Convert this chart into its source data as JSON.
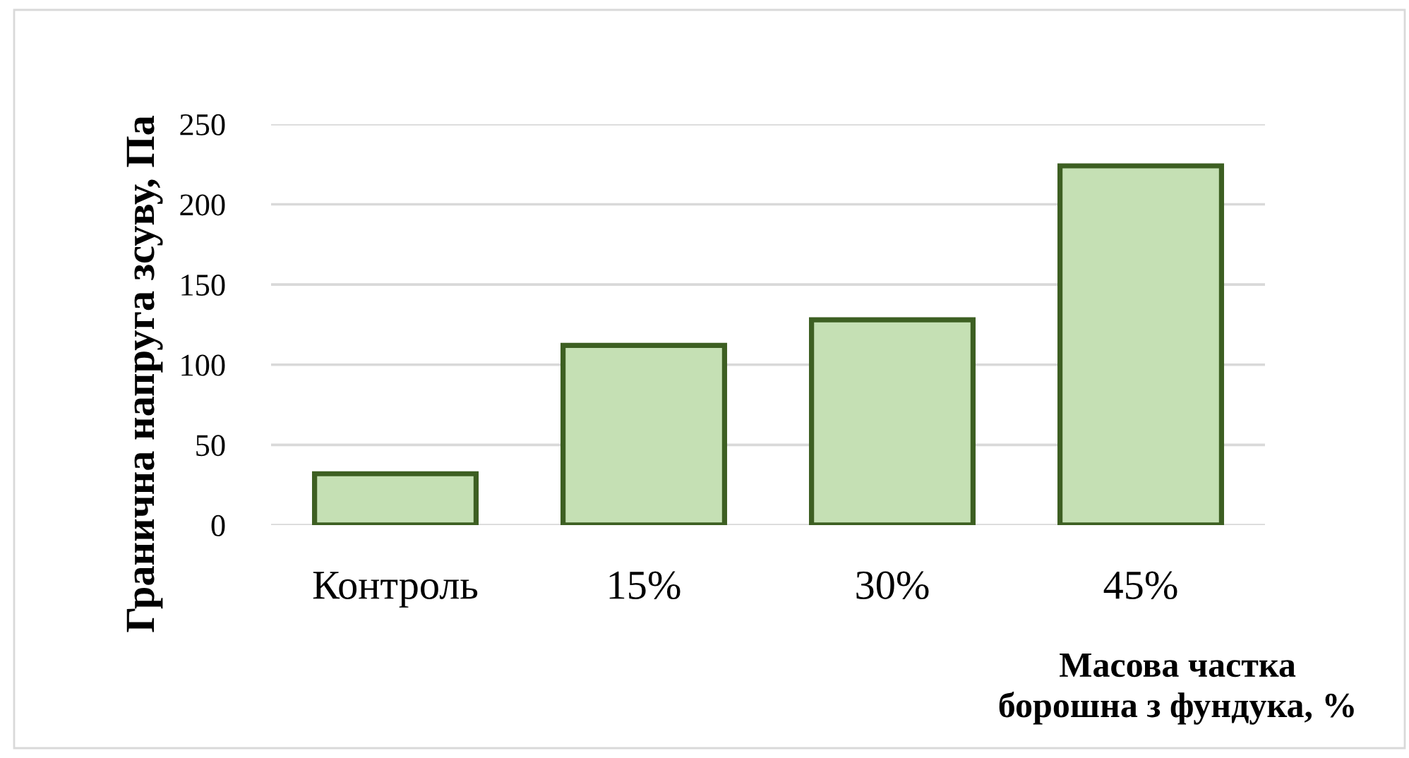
{
  "chart_data": {
    "type": "bar",
    "categories": [
      "Контроль",
      "15%",
      "30%",
      "45%"
    ],
    "values": [
      32,
      112,
      128,
      224
    ],
    "color": "#c5e0b4",
    "ylabel": "Гранична напруга зсуву, Па",
    "xlabel": "Масова частка\nборошна з фундука, %",
    "ylim": [
      0,
      250
    ],
    "yticks": [
      0,
      50,
      100,
      150,
      200,
      250
    ],
    "grid": "y",
    "legend": false
  }
}
